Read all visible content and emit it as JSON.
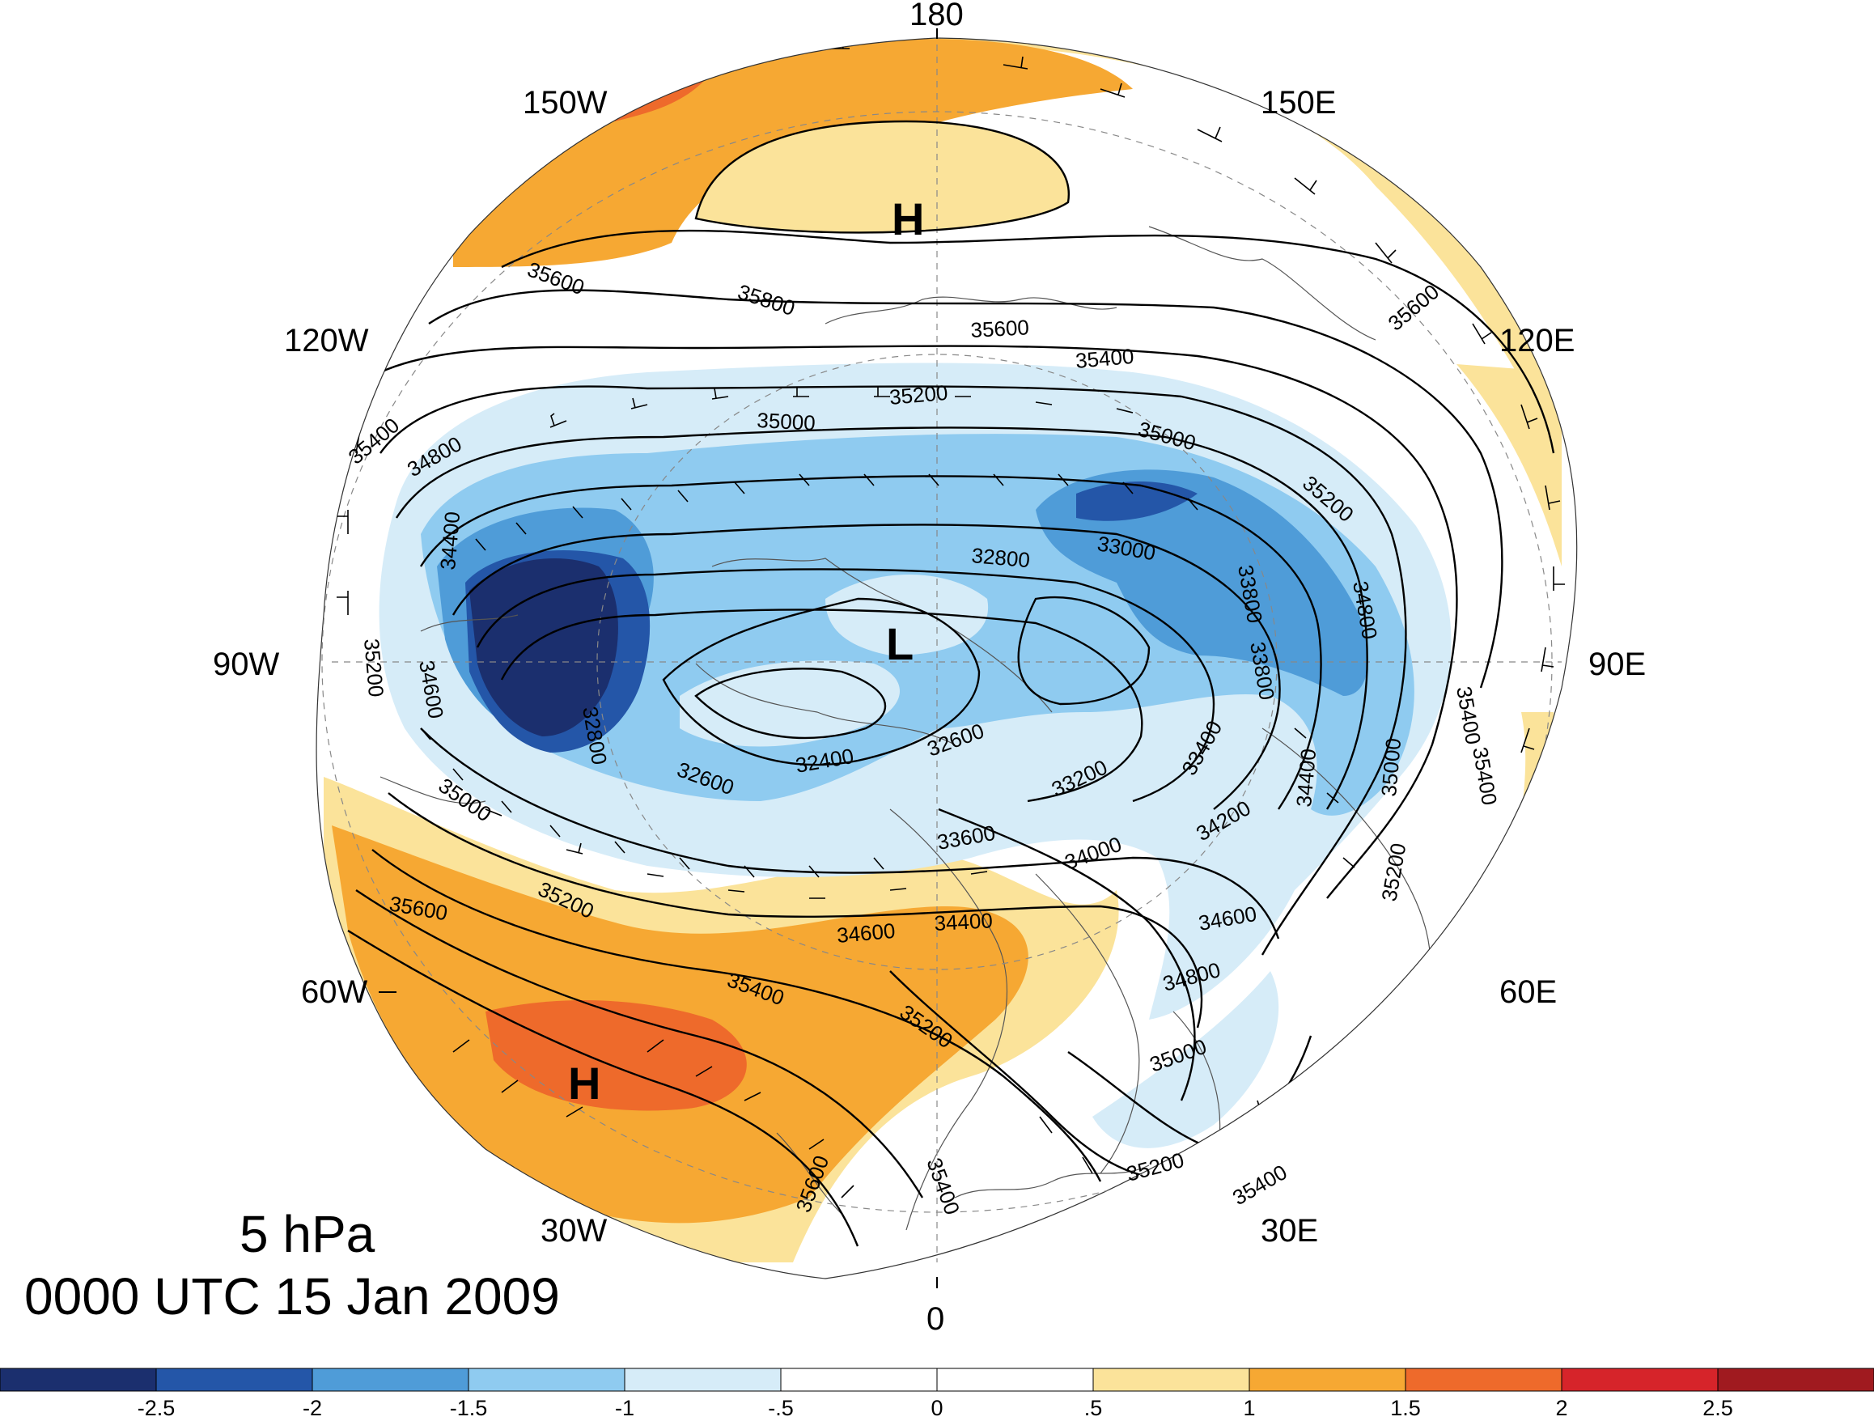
{
  "title": {
    "level": "5 hPa",
    "time": "0000 UTC 15 Jan 2009"
  },
  "longitude_labels": {
    "180": "180",
    "150E": "150E",
    "120E": "120E",
    "90E": "90E",
    "60E": "60E",
    "30E": "30E",
    "0": "0",
    "30W": "30W",
    "60W": "60W",
    "90W": "90W",
    "120W": "120W",
    "150W": "150W"
  },
  "centers": {
    "high_pacific": "H",
    "high_atlantic": "H",
    "low_polar": "L"
  },
  "contour_labels": [
    "35800",
    "35600",
    "35600",
    "35600",
    "35400",
    "35400",
    "35400",
    "35200",
    "35200",
    "35000",
    "35000",
    "34800",
    "34800",
    "34600",
    "34400",
    "34200",
    "34000",
    "33800",
    "33600",
    "33400",
    "33200",
    "33000",
    "32800",
    "32600",
    "32600",
    "32400",
    "35200",
    "35000",
    "35200",
    "35600",
    "35400",
    "35200",
    "34600",
    "34400",
    "35400",
    "35600",
    "34600",
    "35000",
    "34400",
    "33800",
    "32800",
    "35400",
    "35200",
    "35000",
    "34800",
    "35400",
    "35200"
  ],
  "colorbar": {
    "colors": [
      "#1b2f6e",
      "#2456a8",
      "#4f9cd8",
      "#8fcbf0",
      "#d6ecf8",
      "#ffffff",
      "#ffffff",
      "#fbe39a",
      "#f6a833",
      "#ee6a2b",
      "#d6242a",
      "#a01a1f"
    ],
    "tick_labels": [
      "-2.5",
      "-2",
      "-1.5",
      "-1",
      "-.5",
      "0",
      ".5",
      "1",
      "1.5",
      "2",
      "2.5"
    ]
  }
}
